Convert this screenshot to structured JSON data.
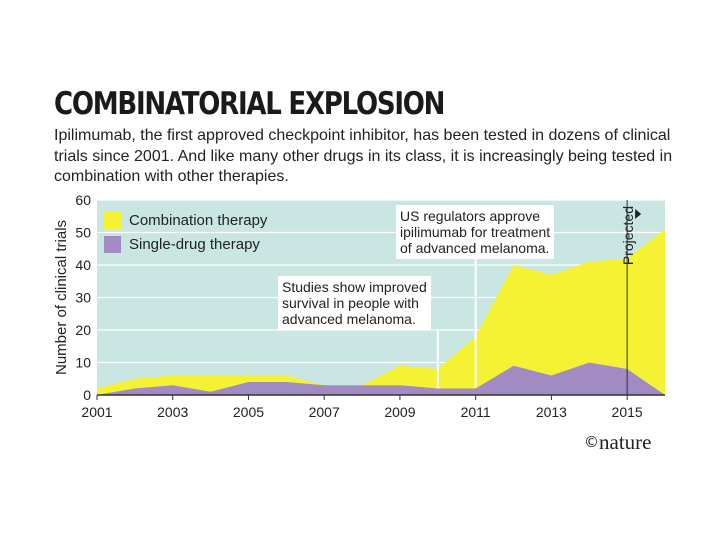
{
  "title": "COMBINATORIAL EXPLOSION",
  "subtitle": "Ipilimumab, the first approved checkpoint inhibitor, has been tested in dozens of clinical trials since 2001. And like many other drugs in its class, it is increasingly being tested in combination with other therapies.",
  "credit": {
    "symbol": "©",
    "name": "nature"
  },
  "colors": {
    "background": "#c9e6e3",
    "combination": "#f4f233",
    "single": "#a18bc2",
    "grid": "#ffffff",
    "axis": "#333333"
  },
  "chart_data": {
    "type": "area",
    "stacked": true,
    "x": [
      2001,
      2002,
      2003,
      2004,
      2005,
      2006,
      2007,
      2008,
      2009,
      2010,
      2011,
      2012,
      2013,
      2014,
      2015,
      2016
    ],
    "series": [
      {
        "name": "Single-drug therapy",
        "values": [
          0,
          2,
          3,
          1,
          4,
          4,
          3,
          3,
          3,
          2,
          2,
          9,
          6,
          10,
          8,
          0
        ]
      },
      {
        "name": "Combination therapy",
        "values": [
          2,
          3,
          3,
          5,
          2,
          2,
          0,
          0,
          6,
          6,
          16,
          31,
          31,
          31,
          34,
          51
        ]
      }
    ],
    "xlabel": "",
    "ylabel": "Number of clinical trials",
    "ylim": [
      0,
      60
    ],
    "yticks": [
      0,
      10,
      20,
      30,
      40,
      50,
      60
    ],
    "xticks": [
      2001,
      2003,
      2005,
      2007,
      2009,
      2011,
      2013,
      2015
    ],
    "xlim": [
      2001,
      2016
    ],
    "legend": [
      "Combination therapy",
      "Single-drug therapy"
    ],
    "legend_position": "top-left",
    "projected_label": "Projected",
    "projected_from": 2015,
    "annotations": [
      {
        "text": [
          "Studies show improved",
          "survival in people with",
          "advanced melanoma."
        ],
        "year": 2010
      },
      {
        "text": [
          "US regulators approve",
          "ipilimumab for treatment",
          "of advanced melanoma."
        ],
        "year": 2011
      }
    ]
  }
}
